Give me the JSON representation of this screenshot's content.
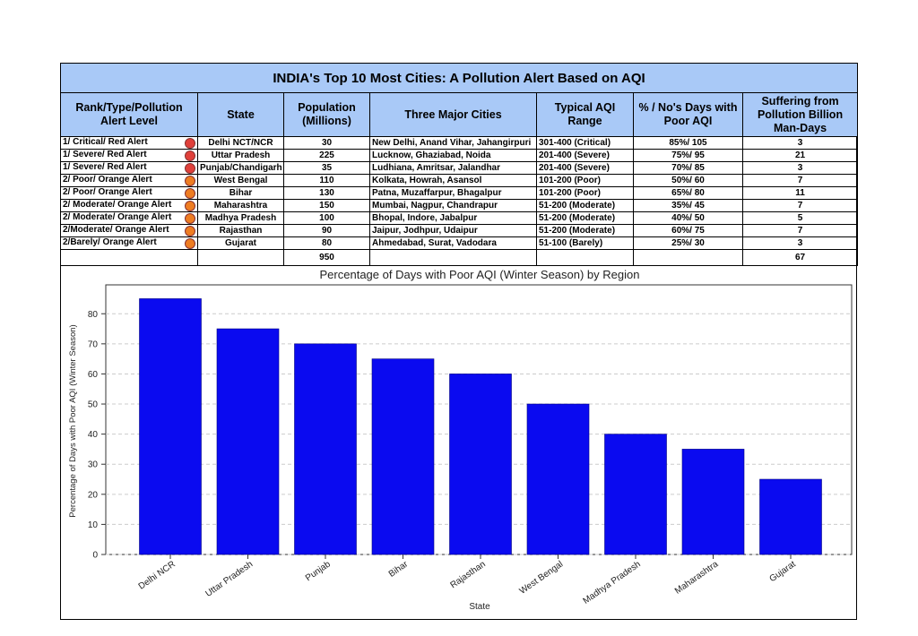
{
  "table": {
    "title": "INDIA's Top 10 Most Cities: A Pollution Alert Based on AQI",
    "headers": [
      "Rank/Type/Pollution Alert Level",
      "State",
      "Population (Millions)",
      "Three Major Cities",
      "Typical AQI Range",
      "% / No's Days with Poor AQI",
      "Suffering from Pollution Billion Man-Days"
    ],
    "rows": [
      [
        "1/ Critical/ Red Alert",
        "Delhi NCT/NCR",
        "30",
        "New Delhi, Anand Vihar, Jahangirpuri",
        "301-400 (Critical)",
        "85%/ 105",
        "3"
      ],
      [
        "1/ Severe/ Red Alert",
        "Uttar Pradesh",
        "225",
        "Lucknow, Ghaziabad, Noida",
        "201-400  (Severe)",
        "75%/ 95",
        "21"
      ],
      [
        "1/ Severe/ Red Alert",
        "Punjab/Chandigarh",
        "35",
        "Ludhiana, Amritsar, Jalandhar",
        "201-400  (Severe)",
        "70%/ 85",
        "3"
      ],
      [
        "2/ Poor/ Orange Alert",
        "West Bengal",
        "110",
        "Kolkata, Howrah, Asansol",
        "101-200 (Poor)",
        "50%/ 60",
        "7"
      ],
      [
        "2/ Poor/ Orange Alert",
        "Bihar",
        "130",
        "Patna, Muzaffarpur, Bhagalpur",
        "101-200 (Poor)",
        "65%/ 80",
        "11"
      ],
      [
        "2/ Moderate/ Orange Alert",
        "Maharashtra",
        "150",
        "Mumbai, Nagpur, Chandrapur",
        "51-200  (Moderate)",
        "35%/ 45",
        "7"
      ],
      [
        "2/ Moderate/ Orange Alert",
        "Madhya Pradesh",
        "100",
        "Bhopal, Indore, Jabalpur",
        "51-200  (Moderate)",
        "40%/ 50",
        "5"
      ],
      [
        "2/Moderate/ Orange Alert",
        "Rajasthan",
        "90",
        "Jaipur, Jodhpur, Udaipur",
        "51-200  (Moderate)",
        "60%/ 75",
        "7"
      ],
      [
        "2/Barely/ Orange Alert",
        "Gujarat",
        "80",
        "Ahmedabad, Surat, Vadodara",
        "51-100 (Barely)",
        "25%/ 30",
        "3"
      ]
    ],
    "alert_colors": [
      "#e0403a",
      "#e0403a",
      "#e0403a",
      "#ee7d22",
      "#ee7d22",
      "#ee7d22",
      "#ee7d22",
      "#ee7d22",
      "#ee7d22"
    ],
    "totals": {
      "population": "950",
      "suffering": "67"
    }
  },
  "chart_data": {
    "type": "bar",
    "title": "Percentage of Days with Poor AQI (Winter Season) by Region",
    "x_label": "State",
    "y_label": "Percentage of Days with Poor AQI (Winter Season)",
    "categories": [
      "Delhi NCR",
      "Uttar Pradesh",
      "Punjab",
      "Bihar",
      "Rajasthan",
      "West Bengal",
      "Madhya Pradesh",
      "Maharashtra",
      "Gujarat"
    ],
    "values": [
      85,
      75,
      70,
      65,
      60,
      50,
      40,
      35,
      25
    ],
    "color": "#0a0af0",
    "ylim": [
      0,
      89.6
    ],
    "yticks": [
      0,
      10,
      20,
      30,
      40,
      50,
      60,
      70,
      80
    ],
    "grid": true
  }
}
